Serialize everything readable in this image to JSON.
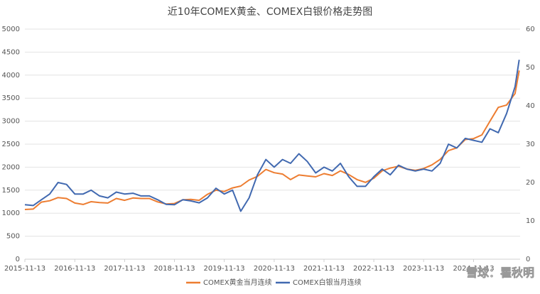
{
  "chart_data": {
    "type": "line",
    "title": "近10年COMEX黄金、COMEX白银价格走势图",
    "watermark": "雪球：瞿秋明",
    "x": [
      "2015-11-13",
      "2016-01-13",
      "2016-03-13",
      "2016-05-13",
      "2016-07-13",
      "2016-09-13",
      "2016-11-13",
      "2017-01-13",
      "2017-03-13",
      "2017-05-13",
      "2017-07-13",
      "2017-09-13",
      "2017-11-13",
      "2018-01-13",
      "2018-03-13",
      "2018-05-13",
      "2018-07-13",
      "2018-09-13",
      "2018-11-13",
      "2019-01-13",
      "2019-03-13",
      "2019-05-13",
      "2019-07-13",
      "2019-09-13",
      "2019-11-13",
      "2020-01-13",
      "2020-03-13",
      "2020-05-13",
      "2020-07-13",
      "2020-09-13",
      "2020-11-13",
      "2021-01-13",
      "2021-03-13",
      "2021-05-13",
      "2021-07-13",
      "2021-09-13",
      "2021-11-13",
      "2022-01-13",
      "2022-03-13",
      "2022-05-13",
      "2022-07-13",
      "2022-09-13",
      "2022-11-13",
      "2023-01-13",
      "2023-03-13",
      "2023-05-13",
      "2023-07-13",
      "2023-09-13",
      "2023-11-13",
      "2024-01-13",
      "2024-03-13",
      "2024-05-13",
      "2024-07-13",
      "2024-09-13",
      "2024-11-13",
      "2025-01-13",
      "2025-03-13",
      "2025-05-13",
      "2025-07-13",
      "2025-09-13",
      "2025-10-13"
    ],
    "series": [
      {
        "name": "COMEX黄金当月连续",
        "color": "#ed7d31",
        "axis": "y",
        "values": [
          1080,
          1090,
          1240,
          1270,
          1340,
          1320,
          1220,
          1190,
          1250,
          1230,
          1220,
          1320,
          1280,
          1330,
          1320,
          1320,
          1245,
          1200,
          1210,
          1290,
          1300,
          1280,
          1410,
          1500,
          1470,
          1550,
          1590,
          1720,
          1800,
          1950,
          1880,
          1850,
          1730,
          1830,
          1810,
          1790,
          1860,
          1820,
          1920,
          1840,
          1730,
          1670,
          1760,
          1920,
          1980,
          2020,
          1960,
          1930,
          1970,
          2050,
          2170,
          2360,
          2420,
          2600,
          2620,
          2700,
          3000,
          3300,
          3350,
          3600,
          4100
        ]
      },
      {
        "name": "COMEX白银当月连续",
        "color": "#4169b0",
        "axis": "y2",
        "values": [
          14.2,
          14,
          15.5,
          17,
          20,
          19.5,
          17,
          17,
          18,
          16.5,
          16,
          17.5,
          17,
          17.2,
          16.5,
          16.5,
          15.5,
          14.3,
          14.2,
          15.5,
          15.2,
          14.7,
          16,
          18.5,
          17,
          18,
          12.5,
          16,
          22,
          26,
          24,
          26,
          25,
          27.5,
          25.5,
          22.5,
          24,
          23,
          25,
          21.5,
          19,
          19,
          21.5,
          23.5,
          22,
          24.5,
          23.5,
          23,
          23.5,
          23,
          25,
          30,
          29,
          31.5,
          31,
          30.5,
          34,
          33,
          38,
          45,
          52
        ]
      }
    ],
    "xlim": [
      "2015-11-13",
      "2025-10-20"
    ],
    "xticks": [
      "2015-11-13",
      "2016-11-13",
      "2017-11-13",
      "2018-11-13",
      "2019-11-13",
      "2020-11-13",
      "2021-11-13",
      "2022-11-13",
      "2023-11-13",
      "2024-11-13"
    ],
    "ylim": [
      0,
      5000
    ],
    "yticks": [
      0,
      500,
      1000,
      1500,
      2000,
      2500,
      3000,
      3500,
      4000,
      4500,
      5000
    ],
    "y2lim": [
      0,
      60
    ],
    "y2ticks": [
      0,
      10,
      20,
      30,
      40,
      50,
      60
    ],
    "grid": true,
    "legend": "bottom"
  }
}
